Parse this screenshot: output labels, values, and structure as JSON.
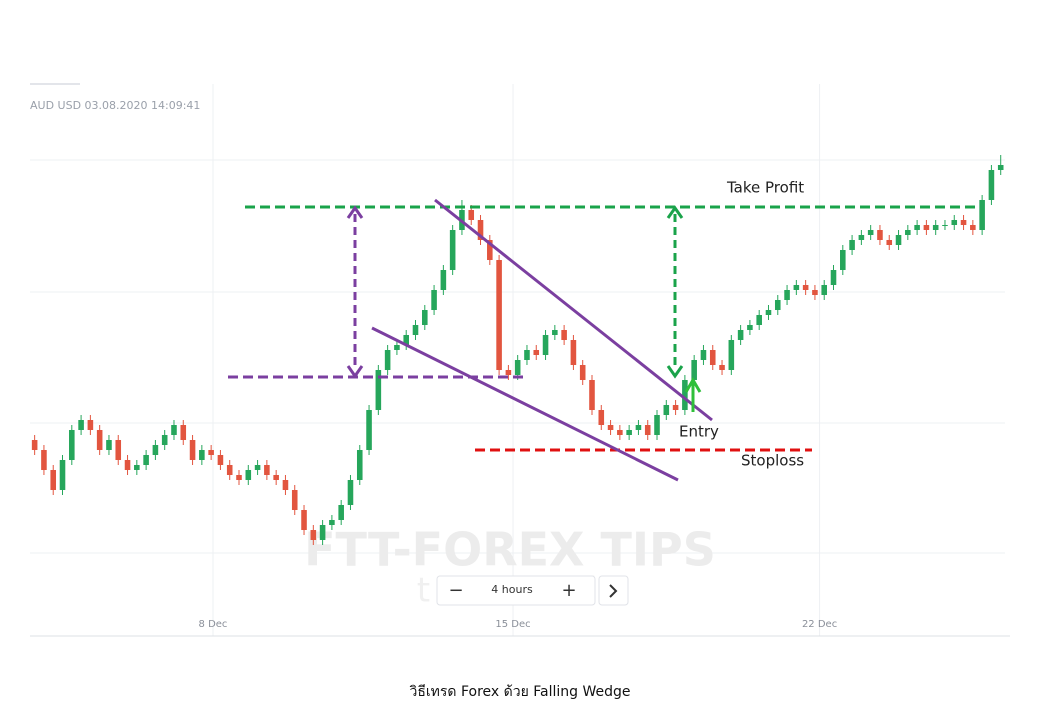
{
  "header": "AUD USD  03.08.2020 14:09:41",
  "interval": "4 hours",
  "watermark": "FTT-FOREX TIPS",
  "watermark_sub": "thailand",
  "caption": "วิธีเทรด Forex ด้วย Falling Wedge",
  "annotations": [
    "Take Profit",
    "Entry",
    "Stoploss"
  ],
  "chart_data": {
    "type": "candlestick",
    "up_color": "#26a65b",
    "down_color": "#e2553f",
    "xlim": [
      -0.5,
      105
    ],
    "ylim": [
      0,
      100
    ],
    "xticks": [
      {
        "value": 19.2,
        "label": "8 Dec"
      },
      {
        "value": 51.5,
        "label": "15 Dec"
      },
      {
        "value": 84.5,
        "label": "22 Dec"
      }
    ],
    "grid": true,
    "open": [
      32,
      30,
      26,
      22,
      28,
      34,
      36,
      34,
      30,
      32,
      28,
      26,
      27,
      29,
      31,
      33,
      35,
      32,
      28,
      30,
      29,
      27,
      25,
      24,
      26,
      27,
      25,
      24,
      22,
      18,
      14,
      12,
      15,
      16,
      19,
      24,
      30,
      38,
      46,
      50,
      51,
      53,
      55,
      58,
      62,
      66,
      74,
      78,
      76,
      72,
      68,
      46,
      45,
      48,
      50,
      49,
      53,
      54,
      52,
      47,
      44,
      38,
      35,
      34,
      33,
      34,
      35,
      33,
      37,
      39,
      38,
      44,
      48,
      50,
      47,
      46,
      52,
      54,
      55,
      57,
      58,
      60,
      62,
      63,
      62,
      61,
      63,
      66,
      70,
      72,
      73,
      74,
      72,
      71,
      73,
      74,
      75,
      74,
      75,
      75,
      76,
      75,
      74,
      80,
      86
    ],
    "high": [
      33,
      31,
      27,
      29,
      35,
      37,
      37,
      35,
      33,
      33,
      29,
      28,
      30,
      32,
      34,
      36,
      36,
      33,
      31,
      31,
      30,
      28,
      26,
      27,
      28,
      28,
      26,
      25,
      23,
      19,
      15,
      16,
      17,
      20,
      25,
      31,
      39,
      47,
      51,
      52,
      54,
      56,
      59,
      63,
      67,
      75,
      80,
      79,
      77,
      73,
      69,
      47,
      49,
      51,
      51,
      54,
      55,
      55,
      53,
      48,
      45,
      39,
      36,
      35,
      35,
      36,
      36,
      38,
      40,
      40,
      45,
      49,
      51,
      51,
      48,
      53,
      55,
      56,
      58,
      59,
      61,
      63,
      64,
      64,
      63,
      64,
      67,
      71,
      73,
      74,
      75,
      75,
      73,
      74,
      75,
      76,
      76,
      76,
      76,
      77,
      77,
      76,
      81,
      87,
      89
    ],
    "low": [
      29,
      25,
      21,
      21,
      27,
      33,
      33,
      29,
      29,
      27,
      25,
      25,
      26,
      28,
      30,
      32,
      31,
      27,
      27,
      28,
      26,
      24,
      23,
      23,
      25,
      24,
      23,
      21,
      17,
      13,
      11,
      11,
      14,
      15,
      18,
      23,
      29,
      37,
      45,
      49,
      50,
      52,
      54,
      57,
      61,
      65,
      73,
      75,
      71,
      67,
      45,
      44,
      44,
      47,
      48,
      48,
      52,
      51,
      46,
      43,
      37,
      34,
      33,
      32,
      32,
      33,
      32,
      32,
      36,
      37,
      37,
      43,
      47,
      46,
      45,
      45,
      51,
      53,
      54,
      56,
      57,
      59,
      61,
      61,
      60,
      60,
      62,
      65,
      69,
      71,
      72,
      71,
      70,
      70,
      72,
      73,
      73,
      73,
      74,
      74,
      74,
      73,
      73,
      79,
      85
    ],
    "close": [
      30,
      26,
      22,
      28,
      34,
      36,
      34,
      30,
      32,
      28,
      26,
      27,
      29,
      31,
      33,
      35,
      32,
      28,
      30,
      29,
      27,
      25,
      24,
      26,
      27,
      25,
      24,
      22,
      18,
      14,
      12,
      15,
      16,
      19,
      24,
      30,
      38,
      46,
      50,
      51,
      53,
      55,
      58,
      62,
      66,
      74,
      78,
      76,
      72,
      68,
      46,
      45,
      48,
      50,
      49,
      53,
      54,
      52,
      47,
      44,
      38,
      35,
      34,
      33,
      34,
      35,
      33,
      37,
      39,
      38,
      44,
      48,
      50,
      47,
      46,
      52,
      54,
      55,
      57,
      58,
      60,
      62,
      63,
      62,
      61,
      63,
      66,
      70,
      72,
      73,
      74,
      72,
      71,
      73,
      74,
      75,
      74,
      75,
      75,
      76,
      75,
      74,
      80,
      86,
      87
    ]
  }
}
